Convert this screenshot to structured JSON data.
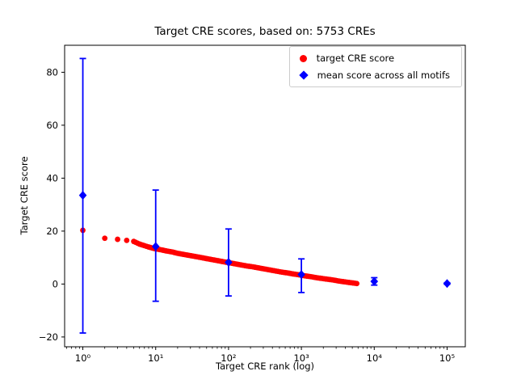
{
  "chart_data": {
    "type": "scatter",
    "title": "Target CRE scores, based on: 5753 CREs",
    "xlabel": "Target CRE rank (log)",
    "ylabel": "Target CRE score",
    "xscale": "log",
    "xlim": [
      0.5623,
      177828
    ],
    "ylim": [
      -23.7,
      90.2
    ],
    "grid": false,
    "legend_position": "upper right",
    "xticks": [
      {
        "value": 1,
        "label": "10⁰"
      },
      {
        "value": 10,
        "label": "10¹"
      },
      {
        "value": 100,
        "label": "10²"
      },
      {
        "value": 1000,
        "label": "10³"
      },
      {
        "value": 10000,
        "label": "10⁴"
      },
      {
        "value": 100000,
        "label": "10⁵"
      }
    ],
    "yticks": [
      {
        "value": -20,
        "label": "−20"
      },
      {
        "value": 0,
        "label": "0"
      },
      {
        "value": 20,
        "label": "20"
      },
      {
        "value": 40,
        "label": "40"
      },
      {
        "value": 60,
        "label": "60"
      },
      {
        "value": 80,
        "label": "80"
      }
    ],
    "series": [
      {
        "name": "target CRE score",
        "marker": "circle",
        "color": "#ff0000",
        "points": [
          [
            1,
            20.3
          ],
          [
            2,
            17.3
          ],
          [
            3,
            16.9
          ],
          [
            4,
            16.5
          ],
          [
            5,
            16.1
          ],
          [
            6,
            15.1
          ],
          [
            7,
            14.5
          ],
          [
            8,
            14.0
          ],
          [
            9,
            13.6
          ],
          [
            10,
            13.3
          ],
          [
            12,
            12.9
          ],
          [
            14,
            12.5
          ],
          [
            17,
            12.1
          ],
          [
            20,
            11.6
          ],
          [
            24,
            11.2
          ],
          [
            29,
            10.8
          ],
          [
            35,
            10.4
          ],
          [
            42,
            10.0
          ],
          [
            50,
            9.6
          ],
          [
            60,
            9.2
          ],
          [
            72,
            8.8
          ],
          [
            86,
            8.4
          ],
          [
            104,
            8.0
          ],
          [
            125,
            7.6
          ],
          [
            150,
            7.2
          ],
          [
            180,
            6.8
          ],
          [
            216,
            6.5
          ],
          [
            259,
            6.1
          ],
          [
            311,
            5.7
          ],
          [
            373,
            5.3
          ],
          [
            448,
            4.9
          ],
          [
            538,
            4.5
          ],
          [
            645,
            4.2
          ],
          [
            774,
            3.8
          ],
          [
            929,
            3.5
          ],
          [
            1115,
            3.1
          ],
          [
            1338,
            2.8
          ],
          [
            1606,
            2.4
          ],
          [
            1927,
            2.1
          ],
          [
            2312,
            1.8
          ],
          [
            2774,
            1.5
          ],
          [
            3329,
            1.1
          ],
          [
            3995,
            0.8
          ],
          [
            4794,
            0.5
          ],
          [
            5753,
            0.2
          ]
        ]
      },
      {
        "name": "mean score across all motifs",
        "marker": "diamond",
        "color": "#0000ff",
        "points": [
          {
            "x": 1,
            "y": 33.5,
            "lo": -18.5,
            "hi": 85.2
          },
          {
            "x": 10,
            "y": 14.2,
            "lo": -6.5,
            "hi": 35.5
          },
          {
            "x": 100,
            "y": 8.2,
            "lo": -4.5,
            "hi": 20.8
          },
          {
            "x": 1000,
            "y": 3.6,
            "lo": -3.2,
            "hi": 9.5
          },
          {
            "x": 10000,
            "y": 1.0,
            "lo": -0.4,
            "hi": 2.4
          },
          {
            "x": 100000,
            "y": 0.2,
            "lo": -0.1,
            "hi": 0.5
          }
        ]
      }
    ]
  }
}
